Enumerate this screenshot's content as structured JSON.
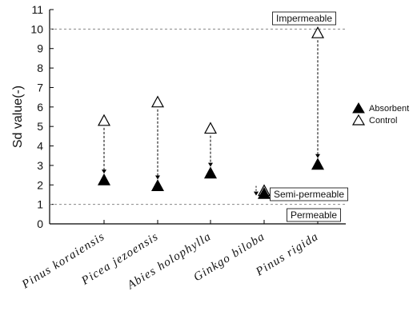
{
  "chart_data": {
    "type": "scatter",
    "ylabel": "Sd value(-)",
    "ylim": [
      0,
      11
    ],
    "yticks": [
      "0",
      "1",
      "2",
      "3",
      "4",
      "5",
      "6",
      "7",
      "8",
      "9",
      "10",
      "11"
    ],
    "categories": [
      "Pinus koraiensis",
      "Picea jezoensis",
      "Abies holophylla",
      "Ginkgo biloba",
      "Pinus rigida"
    ],
    "series": [
      {
        "name": "Absorbent",
        "marker": "filled-triangle",
        "values": [
          2.25,
          1.95,
          2.6,
          1.55,
          3.05
        ]
      },
      {
        "name": "Control",
        "marker": "open-triangle",
        "values": [
          5.3,
          6.25,
          4.9,
          1.7,
          9.8
        ]
      }
    ],
    "reference_lines": [
      {
        "label": "Impermeable",
        "y": 10
      },
      {
        "label": "Permeable",
        "y": 1
      }
    ],
    "annotations": [
      {
        "label": "Semi-permeable"
      }
    ],
    "legend": "right",
    "grid": false,
    "colors": {
      "marker": "#000000",
      "reference_line": "#888888"
    }
  }
}
